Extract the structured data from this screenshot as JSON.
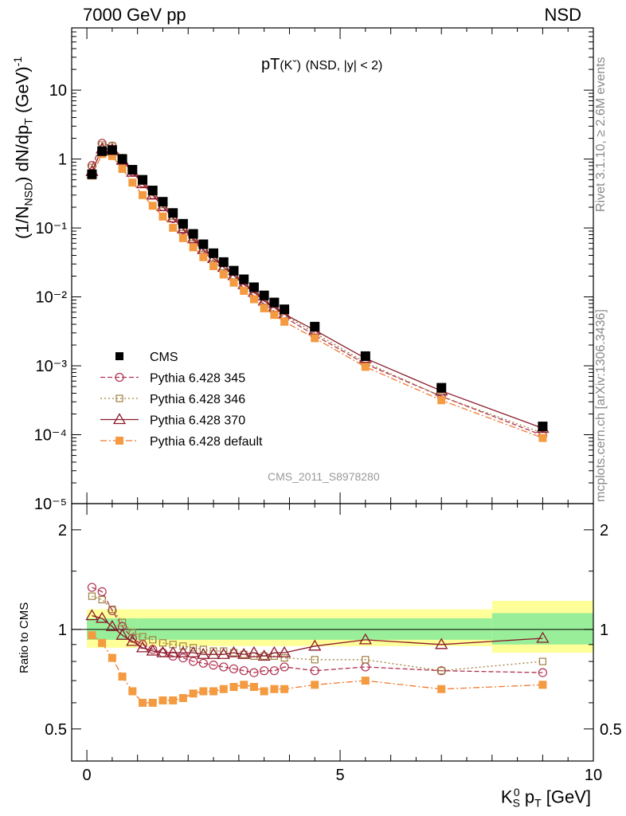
{
  "header": {
    "left": "7000 GeV pp",
    "right": "NSD"
  },
  "title": {
    "main": "pT",
    "particle": "(Kˇ)",
    "tail": "(NSD, |y| < 2)"
  },
  "reference": "CMS_2011_S8978280",
  "side_labels": {
    "rivet": "Rivet 3.1.10, ≥ 2.6M events",
    "mcplots": "mcplots.cern.ch [arXiv:1306.3436]"
  },
  "axes": {
    "ylabel_main": "(1/N_NSD) dN/dp_T (GeV)^-1",
    "ylabel_ratio": "Ratio to CMS",
    "xlabel": "K_S^0 p_T [GeV]",
    "main_ticks": [
      "10",
      "1",
      "10⁻¹",
      "10⁻²",
      "10⁻³",
      "10⁻⁴",
      "10⁻⁵"
    ],
    "ratio_ticks": [
      "2",
      "1",
      "0.5"
    ],
    "x_ticks": [
      "0",
      "5",
      "10"
    ]
  },
  "legend": [
    {
      "label": "CMS",
      "color": "#000000",
      "marker": "filled-square"
    },
    {
      "label": "Pythia 6.428 345",
      "color": "#b03050",
      "marker": "open-circle",
      "dash": "6,3"
    },
    {
      "label": "Pythia 6.428 346",
      "color": "#a08040",
      "marker": "open-square",
      "dash": "2,3"
    },
    {
      "label": "Pythia 6.428 370",
      "color": "#8b1a2a",
      "marker": "open-triangle",
      "dash": ""
    },
    {
      "label": "Pythia 6.428 default",
      "color": "#f07830",
      "marker": "filled-square",
      "dash": "8,3,2,3"
    }
  ],
  "chart_data": {
    "type": "scatter",
    "title": "pT(Kˇ) (NSD, |y| < 2)",
    "xlabel": "K_S^0 p_T [GeV]",
    "ylabel": "(1/N_NSD) dN/dp_T (GeV)^-1",
    "xlim": [
      -0.3,
      10
    ],
    "ylim_main": [
      1e-05,
      80
    ],
    "yscale_main": "log",
    "ratio_ylim": [
      0.4,
      2.4
    ],
    "ratio_scale": "log",
    "x": [
      0.1,
      0.3,
      0.5,
      0.7,
      0.9,
      1.1,
      1.3,
      1.5,
      1.7,
      1.9,
      2.1,
      2.3,
      2.5,
      2.7,
      2.9,
      3.1,
      3.3,
      3.5,
      3.7,
      3.9,
      4.5,
      5.5,
      7.0,
      9.0
    ],
    "data": [
      0.6,
      1.3,
      1.35,
      1.0,
      0.7,
      0.5,
      0.35,
      0.24,
      0.165,
      0.115,
      0.082,
      0.058,
      0.043,
      0.032,
      0.024,
      0.018,
      0.0138,
      0.0105,
      0.0083,
      0.0066,
      0.0037,
      0.00138,
      0.00048,
      0.000132
    ],
    "ratio_band": [
      {
        "x": [
          0,
          1
        ],
        "yellow": [
          0.88,
          1.15
        ],
        "green": [
          0.93,
          1.08
        ]
      },
      {
        "x": [
          1,
          8
        ],
        "yellow": [
          0.89,
          1.15
        ],
        "green": [
          0.93,
          1.08
        ]
      },
      {
        "x": [
          8,
          10
        ],
        "yellow": [
          0.85,
          1.22
        ],
        "green": [
          0.9,
          1.12
        ]
      }
    ],
    "series": [
      {
        "name": "Pythia 6.428 345",
        "ratio": [
          1.34,
          1.3,
          1.14,
          1.02,
          0.94,
          0.9,
          0.87,
          0.85,
          0.83,
          0.82,
          0.8,
          0.79,
          0.78,
          0.77,
          0.76,
          0.75,
          0.74,
          0.75,
          0.75,
          0.77,
          0.75,
          0.77,
          0.75,
          0.74
        ]
      },
      {
        "name": "Pythia 6.428 346",
        "ratio": [
          1.26,
          1.23,
          1.15,
          1.05,
          0.98,
          0.95,
          0.93,
          0.91,
          0.9,
          0.89,
          0.88,
          0.87,
          0.86,
          0.86,
          0.85,
          0.84,
          0.83,
          0.83,
          0.83,
          0.82,
          0.81,
          0.81,
          0.75,
          0.8
        ]
      },
      {
        "name": "Pythia 6.428 370",
        "ratio": [
          1.1,
          1.08,
          1.02,
          0.96,
          0.92,
          0.88,
          0.86,
          0.85,
          0.85,
          0.85,
          0.85,
          0.84,
          0.84,
          0.84,
          0.85,
          0.84,
          0.85,
          0.83,
          0.85,
          0.85,
          0.89,
          0.93,
          0.9,
          0.94
        ]
      },
      {
        "name": "Pythia 6.428 default",
        "ratio": [
          0.96,
          0.91,
          0.82,
          0.72,
          0.65,
          0.6,
          0.6,
          0.61,
          0.61,
          0.62,
          0.64,
          0.65,
          0.65,
          0.66,
          0.67,
          0.68,
          0.67,
          0.65,
          0.66,
          0.66,
          0.68,
          0.7,
          0.66,
          0.68
        ]
      }
    ]
  }
}
